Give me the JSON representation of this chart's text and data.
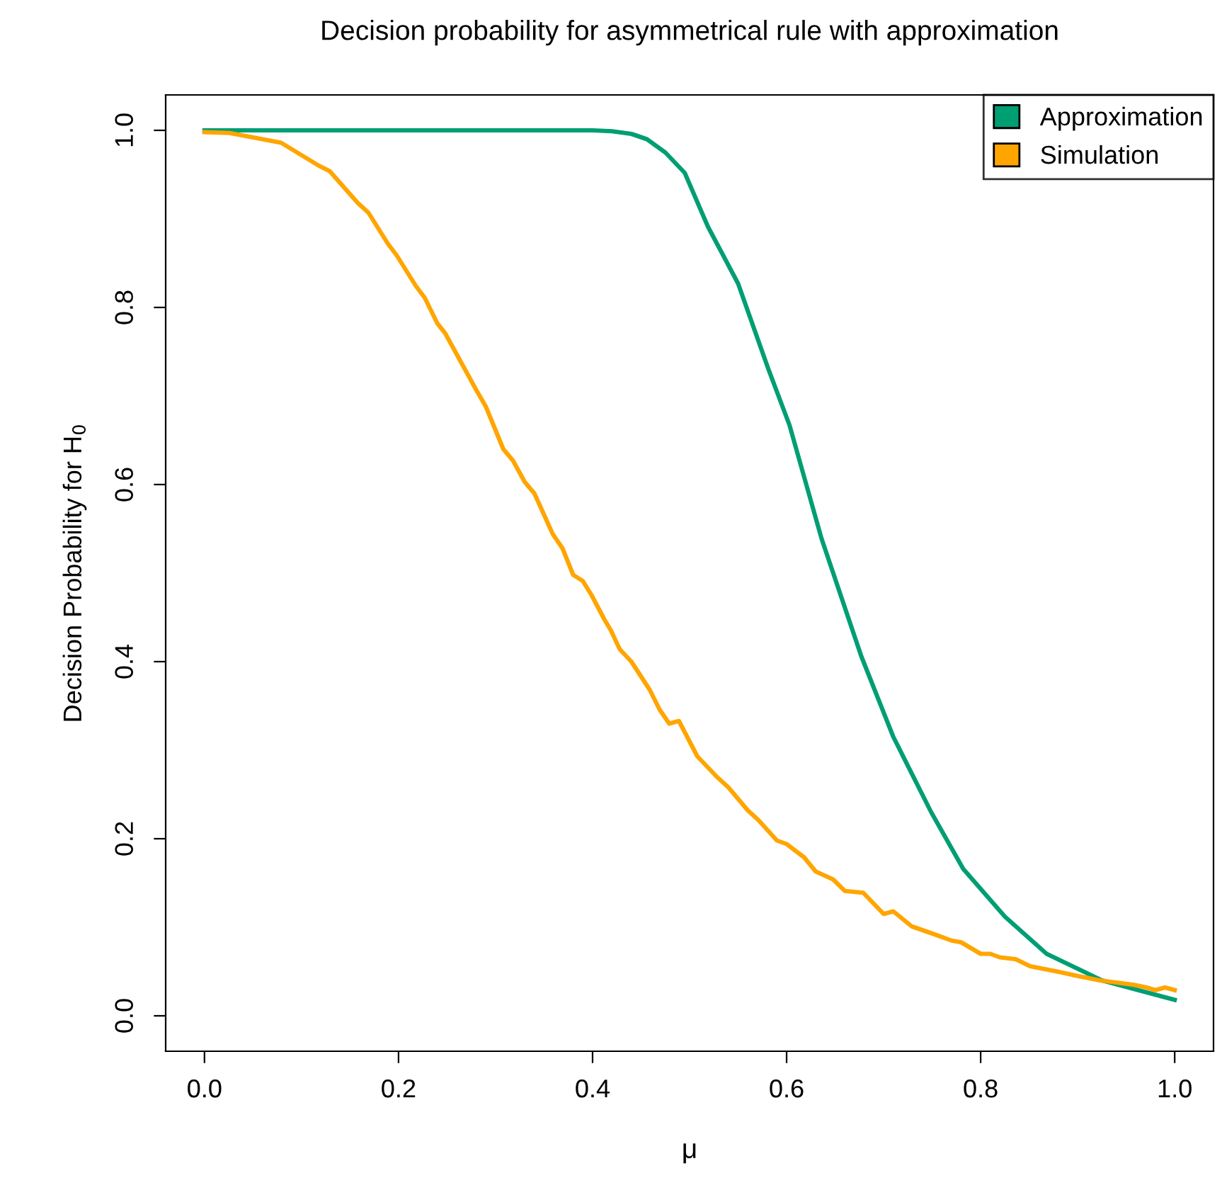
{
  "chart_data": {
    "type": "line",
    "title": "Decision probability for asymmetrical rule with approximation",
    "xlabel": "μ",
    "ylabel": "Decision Probability for H$_{0}$",
    "xlim": [
      -0.04,
      1.04
    ],
    "ylim": [
      -0.04,
      1.04
    ],
    "xticks": [
      {
        "value": 0,
        "label": "0.0"
      },
      {
        "value": 0.2,
        "label": "0.2"
      },
      {
        "value": 0.4,
        "label": "0.4"
      },
      {
        "value": 0.6,
        "label": "0.6"
      },
      {
        "value": 0.8,
        "label": "0.8"
      },
      {
        "value": 1,
        "label": "1.0"
      }
    ],
    "yticks": [
      {
        "value": 0,
        "label": "0.0"
      },
      {
        "value": 0.2,
        "label": "0.2"
      },
      {
        "value": 0.4,
        "label": "0.4"
      },
      {
        "value": 0.6,
        "label": "0.6"
      },
      {
        "value": 0.8,
        "label": "0.8"
      },
      {
        "value": 1,
        "label": "1.0"
      }
    ],
    "grid": false,
    "legend": "top right",
    "marker": "none",
    "line_style": "solid",
    "series": [
      {
        "name": "Approximation",
        "color": "#009e73",
        "x": [
          0,
          0.1,
          0.2,
          0.3,
          0.4,
          0.42,
          0.44,
          0.456,
          0.475,
          0.495,
          0.519,
          0.55,
          0.581,
          0.603,
          0.636,
          0.677,
          0.71,
          0.749,
          0.782,
          0.825,
          0.868,
          0.925,
          1.0
        ],
        "values": [
          1.0,
          1.0,
          1.0,
          1.0,
          1.0,
          0.999,
          0.996,
          0.99,
          0.975,
          0.952,
          0.891,
          0.827,
          0.731,
          0.667,
          0.539,
          0.406,
          0.315,
          0.23,
          0.166,
          0.112,
          0.07,
          0.04,
          0.018
        ]
      },
      {
        "name": "Simulation",
        "color": "#ffa500",
        "x": [
          0,
          0.026,
          0.079,
          0.118,
          0.129,
          0.158,
          0.169,
          0.189,
          0.198,
          0.218,
          0.227,
          0.24,
          0.248,
          0.28,
          0.29,
          0.308,
          0.318,
          0.33,
          0.34,
          0.359,
          0.369,
          0.38,
          0.39,
          0.399,
          0.412,
          0.419,
          0.428,
          0.44,
          0.459,
          0.469,
          0.479,
          0.489,
          0.508,
          0.528,
          0.54,
          0.56,
          0.571,
          0.59,
          0.6,
          0.618,
          0.63,
          0.648,
          0.66,
          0.679,
          0.7,
          0.71,
          0.729,
          0.75,
          0.77,
          0.78,
          0.8,
          0.81,
          0.82,
          0.836,
          0.851,
          0.879,
          0.9,
          0.923,
          0.958,
          0.971,
          0.98,
          0.99,
          1.0
        ],
        "values": [
          0.998,
          0.997,
          0.986,
          0.96,
          0.954,
          0.918,
          0.907,
          0.872,
          0.859,
          0.824,
          0.811,
          0.782,
          0.771,
          0.707,
          0.688,
          0.64,
          0.627,
          0.603,
          0.59,
          0.544,
          0.528,
          0.498,
          0.491,
          0.475,
          0.448,
          0.435,
          0.414,
          0.4,
          0.368,
          0.346,
          0.33,
          0.333,
          0.293,
          0.27,
          0.258,
          0.232,
          0.221,
          0.198,
          0.194,
          0.179,
          0.163,
          0.154,
          0.141,
          0.139,
          0.115,
          0.118,
          0.101,
          0.093,
          0.085,
          0.083,
          0.07,
          0.07,
          0.066,
          0.064,
          0.056,
          0.05,
          0.045,
          0.04,
          0.035,
          0.032,
          0.029,
          0.032,
          0.029
        ]
      }
    ]
  }
}
